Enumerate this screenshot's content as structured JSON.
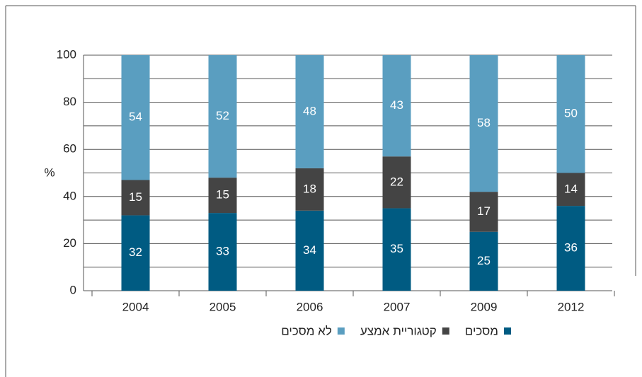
{
  "chart_data": {
    "type": "stacked_bar",
    "y_label": "%",
    "categories": [
      "2004",
      "2005",
      "2006",
      "2007",
      "2009",
      "2012"
    ],
    "series": [
      {
        "name": "מסכים",
        "color": "#005b82",
        "values": [
          32,
          33,
          34,
          35,
          25,
          36
        ]
      },
      {
        "name": "קטגוריית אמצע",
        "color": "#444444",
        "values": [
          15,
          15,
          18,
          22,
          17,
          14
        ]
      },
      {
        "name": "לא מסכים",
        "color": "#5a9ec0",
        "values": [
          54,
          52,
          48,
          43,
          58,
          50
        ]
      }
    ],
    "ylim": [
      0,
      100
    ],
    "yticks": [
      0,
      20,
      40,
      60,
      80,
      100
    ],
    "minor_yticks": [
      10,
      30,
      50,
      70,
      90
    ],
    "grid": true,
    "legend": "bottom"
  }
}
